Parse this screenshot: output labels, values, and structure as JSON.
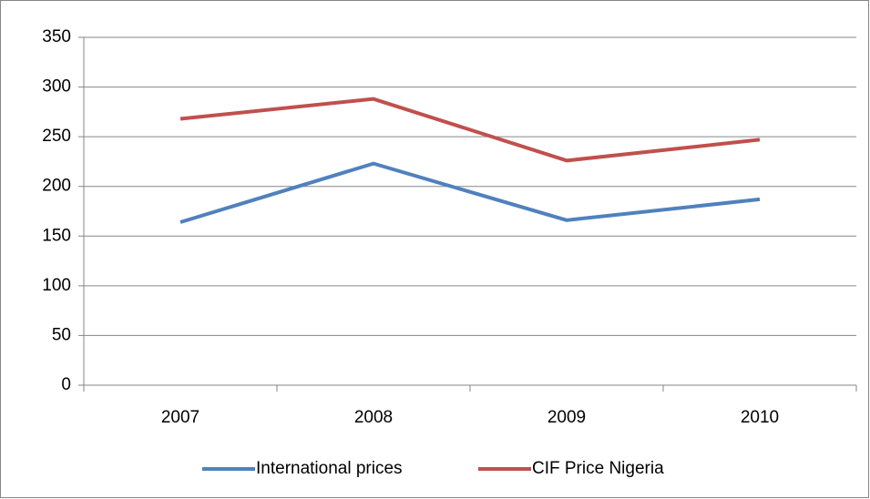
{
  "chart_data": {
    "type": "line",
    "categories": [
      "2007",
      "2008",
      "2009",
      "2010"
    ],
    "series": [
      {
        "name": "International prices",
        "color": "#4f81bd",
        "values": [
          164,
          223,
          166,
          187
        ]
      },
      {
        "name": "CIF Price Nigeria",
        "color": "#c0504d",
        "values": [
          268,
          288,
          226,
          247
        ]
      }
    ],
    "ylim": [
      0,
      350
    ],
    "yticks": [
      0,
      50,
      100,
      150,
      200,
      250,
      300,
      350
    ],
    "grid": true,
    "legend": "bottom"
  }
}
